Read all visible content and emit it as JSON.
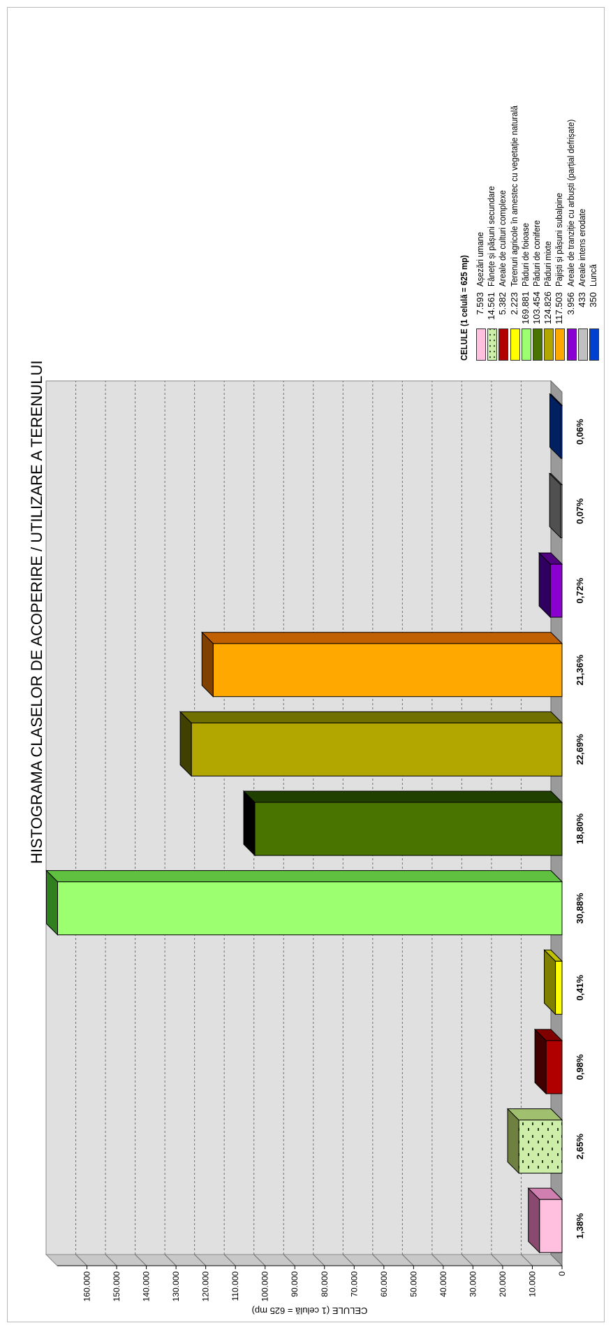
{
  "chart_data": {
    "type": "bar",
    "title": "HISTOGRAMA CLASELOR DE ACOPERIRE / UTILIZARE A TERENULUI",
    "ylabel": "CELULE (1 celulă = 625 mp)",
    "xlabel": "",
    "ylim": [
      0,
      170000
    ],
    "yticks": [
      "0",
      "10.000",
      "20.000",
      "30.000",
      "40.000",
      "50.000",
      "60.000",
      "70.000",
      "80.000",
      "90.000",
      "100.000",
      "110.000",
      "120.000",
      "130.000",
      "140.000",
      "150.000",
      "160.000"
    ],
    "grid": true,
    "legend_placement": "right",
    "categories": [
      "1,38%",
      "2,65%",
      "0,98%",
      "0,41%",
      "30,88%",
      "18,80%",
      "22,69%",
      "21,36%",
      "0,72%",
      "0,07%",
      "0,06%"
    ],
    "values": [
      7593,
      14561,
      5382,
      2223,
      169881,
      103454,
      124826,
      117503,
      3956,
      433,
      350
    ],
    "legend_title": "CELULE (1 celulă = 625 mp)",
    "legend": [
      {
        "value": "7.593",
        "name": "Așezări umane",
        "color": "#ffc0e0",
        "pattern": false
      },
      {
        "value": "14.561",
        "name": "Fânețe și pășuni secundare",
        "color": "#cdeea8",
        "pattern": true
      },
      {
        "value": "5.382",
        "name": "Areale de culturi complexe",
        "color": "#b00000",
        "pattern": false
      },
      {
        "value": "2.223",
        "name": "Terenuri agricole în amestec cu vegetație naturală",
        "color": "#ffff00",
        "pattern": false
      },
      {
        "value": "169.881",
        "name": "Păduri de foioase",
        "color": "#9cff70",
        "pattern": false
      },
      {
        "value": "103.454",
        "name": "Păduri de conifere",
        "color": "#4a7400",
        "pattern": false
      },
      {
        "value": "124.826",
        "name": "Păduri mixte",
        "color": "#b2a600",
        "pattern": false
      },
      {
        "value": "117.503",
        "name": "Pajiști și pășuni subalpine",
        "color": "#ffa800",
        "pattern": false
      },
      {
        "value": "3.956",
        "name": "Areale de tranziție cu arbuști (parțial defrișate)",
        "color": "#8a00d0",
        "pattern": false
      },
      {
        "value": "433",
        "name": "Areale intens erodate",
        "color": "#c0c0c0",
        "pattern": false
      },
      {
        "value": "350",
        "name": "Luncă",
        "color": "#0040d0",
        "pattern": false
      }
    ],
    "bar_colors": {
      "front": [
        "#ffc0e0",
        "#cdeea8",
        "#b00000",
        "#ffff00",
        "#9cff70",
        "#4a7400",
        "#b2a600",
        "#ffa800",
        "#8a00d0",
        "#c0c0c0",
        "#0040d0"
      ],
      "top": [
        "#8a4a70",
        "#708040",
        "#400000",
        "#808000",
        "#308020",
        "#000000",
        "#404000",
        "#804000",
        "#300060",
        "#505050",
        "#002060"
      ],
      "side": [
        "#d080b0",
        "#a0c070",
        "#800000",
        "#c0c000",
        "#60c040",
        "#204000",
        "#707000",
        "#c06000",
        "#500080",
        "#808080",
        "#0020a0"
      ]
    }
  }
}
